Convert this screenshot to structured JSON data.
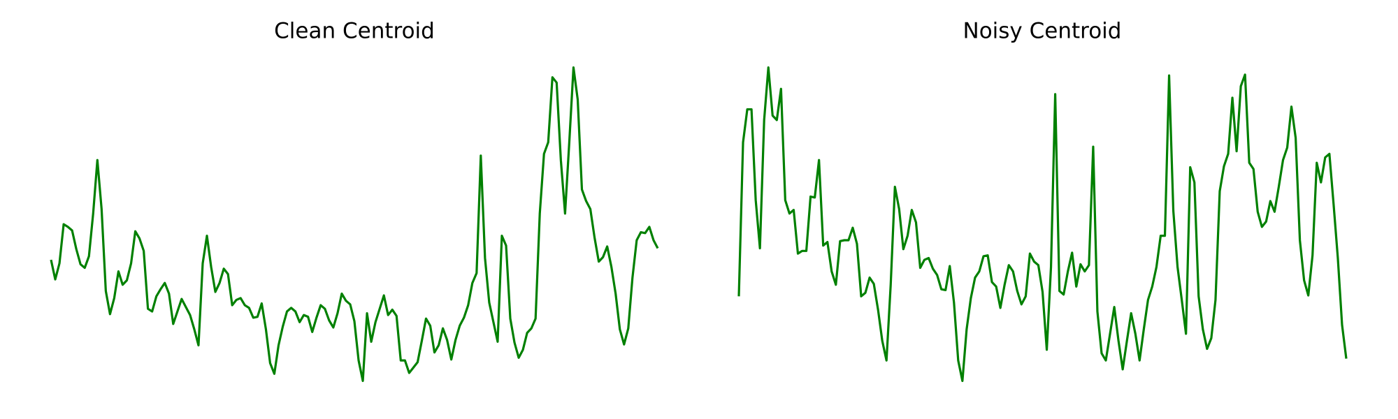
{
  "chart_data": [
    {
      "type": "line",
      "title": "Clean Centroid",
      "color": "#008000",
      "ylim": [
        0,
        360
      ],
      "values": [
        138,
        116,
        134,
        178,
        175,
        171,
        150,
        133,
        129,
        142,
        190,
        250,
        195,
        103,
        77,
        95,
        125,
        110,
        115,
        134,
        170,
        162,
        148,
        83,
        80,
        97,
        105,
        112,
        100,
        66,
        80,
        94,
        85,
        76,
        60,
        42,
        134,
        165,
        130,
        102,
        112,
        128,
        122,
        87,
        93,
        95,
        87,
        84,
        73,
        74,
        89,
        60,
        22,
        10,
        42,
        63,
        80,
        84,
        80,
        68,
        76,
        74,
        57,
        73,
        87,
        83,
        70,
        62,
        78,
        100,
        92,
        88,
        69,
        25,
        2,
        78,
        46,
        68,
        83,
        98,
        76,
        82,
        75,
        25,
        25,
        11,
        17,
        23,
        47,
        72,
        64,
        34,
        42,
        61,
        48,
        26,
        48,
        64,
        73,
        87,
        112,
        123,
        255,
        140,
        90,
        68,
        46,
        165,
        154,
        72,
        45,
        28,
        37,
        56,
        61,
        72,
        190,
        257,
        270,
        343,
        337,
        250,
        190,
        270,
        354,
        318,
        217,
        204,
        195,
        163,
        136,
        141,
        153,
        130,
        100,
        60,
        43,
        61,
        118,
        160,
        169,
        168,
        175,
        160,
        151
      ]
    },
    {
      "type": "line",
      "title": "Noisy Centroid",
      "color": "#008000",
      "ylim": [
        0,
        360
      ],
      "values": [
        97,
        270,
        307,
        307,
        205,
        151,
        295,
        354,
        300,
        295,
        330,
        205,
        190,
        194,
        145,
        148,
        148,
        209,
        208,
        250,
        154,
        158,
        125,
        110,
        159,
        160,
        160,
        174,
        156,
        97,
        101,
        118,
        111,
        82,
        47,
        25,
        110,
        220,
        195,
        150,
        165,
        194,
        180,
        129,
        138,
        140,
        128,
        121,
        105,
        104,
        131,
        90,
        25,
        2,
        60,
        95,
        118,
        125,
        142,
        143,
        113,
        108,
        84,
        110,
        132,
        125,
        103,
        88,
        97,
        145,
        136,
        132,
        102,
        37,
        130,
        324,
        103,
        99,
        125,
        146,
        108,
        133,
        125,
        132,
        265,
        80,
        33,
        25,
        55,
        85,
        47,
        15,
        47,
        78,
        55,
        25,
        60,
        93,
        108,
        130,
        165,
        165,
        345,
        193,
        130,
        93,
        55,
        242,
        225,
        97,
        60,
        38,
        50,
        93,
        215,
        243,
        257,
        320,
        260,
        333,
        346,
        247,
        240,
        192,
        175,
        181,
        204,
        192,
        220,
        250,
        264,
        310,
        275,
        160,
        115,
        98,
        143,
        247,
        225,
        253,
        257,
        200,
        140,
        65,
        27
      ]
    }
  ]
}
